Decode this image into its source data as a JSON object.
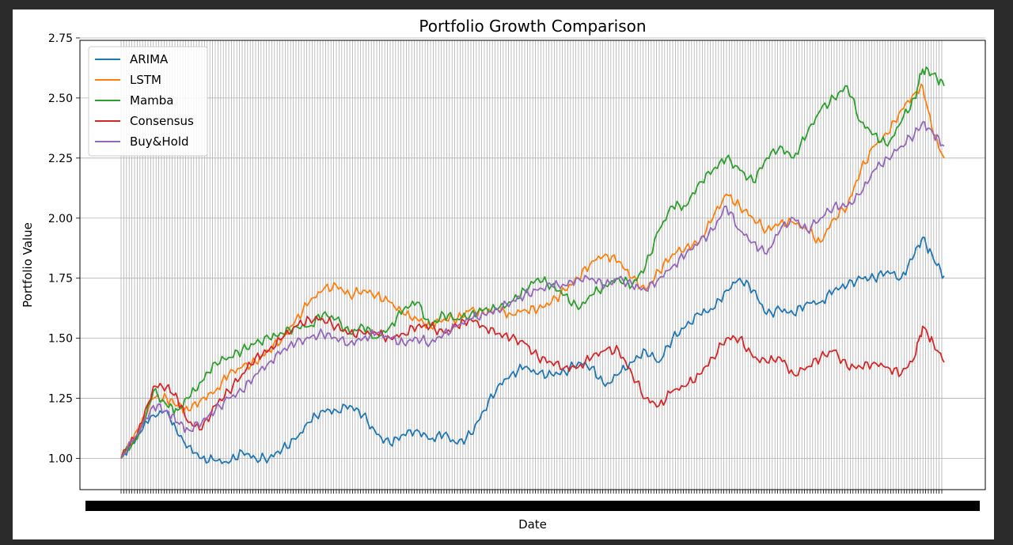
{
  "chart_data": {
    "type": "line",
    "title": "Portfolio Growth Comparison",
    "xlabel": "Date",
    "ylabel": "Portfolio Value",
    "ylim": [
      0.87,
      2.74
    ],
    "yticks": [
      "1.00",
      "1.25",
      "1.50",
      "1.75",
      "2.00",
      "2.25",
      "2.50",
      "2.75"
    ],
    "grid": true,
    "legend_position": "upper left",
    "x_tick_labels_note": "dense overlapping date tick labels (illegible)",
    "series": [
      {
        "name": "ARIMA",
        "color": "#1f77b4",
        "points": [
          [
            0,
            1.0
          ],
          [
            6,
            1.1
          ],
          [
            12,
            1.18
          ],
          [
            17,
            1.2
          ],
          [
            21,
            1.1
          ],
          [
            25,
            1.05
          ],
          [
            30,
            1.0
          ],
          [
            35,
            0.99
          ],
          [
            40,
            0.98
          ],
          [
            45,
            1.03
          ],
          [
            50,
            1.0
          ],
          [
            55,
            1.0
          ],
          [
            60,
            1.04
          ],
          [
            65,
            1.08
          ],
          [
            70,
            1.15
          ],
          [
            75,
            1.2
          ],
          [
            80,
            1.2
          ],
          [
            85,
            1.22
          ],
          [
            90,
            1.18
          ],
          [
            95,
            1.1
          ],
          [
            100,
            1.06
          ],
          [
            105,
            1.1
          ],
          [
            110,
            1.12
          ],
          [
            115,
            1.08
          ],
          [
            120,
            1.1
          ],
          [
            125,
            1.06
          ],
          [
            130,
            1.1
          ],
          [
            135,
            1.2
          ],
          [
            140,
            1.3
          ],
          [
            145,
            1.35
          ],
          [
            150,
            1.38
          ],
          [
            155,
            1.35
          ],
          [
            160,
            1.35
          ],
          [
            165,
            1.36
          ],
          [
            170,
            1.4
          ],
          [
            175,
            1.38
          ],
          [
            180,
            1.3
          ],
          [
            185,
            1.35
          ],
          [
            190,
            1.4
          ],
          [
            195,
            1.45
          ],
          [
            200,
            1.4
          ],
          [
            205,
            1.5
          ],
          [
            210,
            1.55
          ],
          [
            215,
            1.6
          ],
          [
            220,
            1.62
          ],
          [
            225,
            1.7
          ],
          [
            230,
            1.75
          ],
          [
            235,
            1.7
          ],
          [
            240,
            1.6
          ],
          [
            245,
            1.62
          ],
          [
            250,
            1.6
          ],
          [
            255,
            1.65
          ],
          [
            260,
            1.65
          ],
          [
            265,
            1.7
          ],
          [
            270,
            1.72
          ],
          [
            275,
            1.75
          ],
          [
            280,
            1.75
          ],
          [
            285,
            1.78
          ],
          [
            290,
            1.75
          ],
          [
            295,
            1.85
          ],
          [
            298,
            1.92
          ],
          [
            302,
            1.83
          ],
          [
            306,
            1.76
          ]
        ]
      },
      {
        "name": "LSTM",
        "color": "#ff7f0e",
        "points": [
          [
            0,
            1.0
          ],
          [
            6,
            1.12
          ],
          [
            12,
            1.25
          ],
          [
            17,
            1.25
          ],
          [
            21,
            1.22
          ],
          [
            25,
            1.2
          ],
          [
            30,
            1.25
          ],
          [
            35,
            1.28
          ],
          [
            40,
            1.35
          ],
          [
            45,
            1.38
          ],
          [
            50,
            1.4
          ],
          [
            55,
            1.45
          ],
          [
            60,
            1.5
          ],
          [
            65,
            1.58
          ],
          [
            70,
            1.65
          ],
          [
            75,
            1.7
          ],
          [
            80,
            1.72
          ],
          [
            85,
            1.68
          ],
          [
            90,
            1.7
          ],
          [
            95,
            1.68
          ],
          [
            100,
            1.65
          ],
          [
            105,
            1.6
          ],
          [
            110,
            1.58
          ],
          [
            115,
            1.55
          ],
          [
            120,
            1.58
          ],
          [
            125,
            1.58
          ],
          [
            130,
            1.62
          ],
          [
            135,
            1.6
          ],
          [
            140,
            1.62
          ],
          [
            145,
            1.6
          ],
          [
            150,
            1.62
          ],
          [
            155,
            1.62
          ],
          [
            160,
            1.65
          ],
          [
            165,
            1.7
          ],
          [
            170,
            1.75
          ],
          [
            175,
            1.82
          ],
          [
            180,
            1.85
          ],
          [
            185,
            1.82
          ],
          [
            190,
            1.75
          ],
          [
            195,
            1.7
          ],
          [
            200,
            1.78
          ],
          [
            205,
            1.85
          ],
          [
            210,
            1.88
          ],
          [
            215,
            1.9
          ],
          [
            220,
            2.0
          ],
          [
            225,
            2.1
          ],
          [
            230,
            2.05
          ],
          [
            235,
            2.0
          ],
          [
            240,
            1.95
          ],
          [
            245,
            1.98
          ],
          [
            250,
            1.98
          ],
          [
            255,
            1.95
          ],
          [
            260,
            1.9
          ],
          [
            265,
            2.0
          ],
          [
            270,
            2.05
          ],
          [
            275,
            2.2
          ],
          [
            280,
            2.3
          ],
          [
            285,
            2.35
          ],
          [
            290,
            2.45
          ],
          [
            295,
            2.52
          ],
          [
            298,
            2.55
          ],
          [
            302,
            2.35
          ],
          [
            306,
            2.25
          ]
        ]
      },
      {
        "name": "Mamba",
        "color": "#2ca02c",
        "points": [
          [
            0,
            1.0
          ],
          [
            6,
            1.08
          ],
          [
            12,
            1.28
          ],
          [
            17,
            1.22
          ],
          [
            21,
            1.2
          ],
          [
            25,
            1.25
          ],
          [
            30,
            1.32
          ],
          [
            35,
            1.4
          ],
          [
            40,
            1.42
          ],
          [
            45,
            1.45
          ],
          [
            50,
            1.48
          ],
          [
            55,
            1.5
          ],
          [
            60,
            1.52
          ],
          [
            65,
            1.55
          ],
          [
            70,
            1.55
          ],
          [
            75,
            1.6
          ],
          [
            80,
            1.58
          ],
          [
            85,
            1.52
          ],
          [
            90,
            1.55
          ],
          [
            95,
            1.5
          ],
          [
            100,
            1.55
          ],
          [
            105,
            1.62
          ],
          [
            110,
            1.65
          ],
          [
            115,
            1.55
          ],
          [
            120,
            1.6
          ],
          [
            125,
            1.58
          ],
          [
            130,
            1.6
          ],
          [
            135,
            1.62
          ],
          [
            140,
            1.62
          ],
          [
            145,
            1.65
          ],
          [
            150,
            1.7
          ],
          [
            155,
            1.75
          ],
          [
            160,
            1.72
          ],
          [
            165,
            1.68
          ],
          [
            170,
            1.62
          ],
          [
            175,
            1.68
          ],
          [
            180,
            1.72
          ],
          [
            185,
            1.75
          ],
          [
            190,
            1.72
          ],
          [
            195,
            1.8
          ],
          [
            200,
            1.95
          ],
          [
            205,
            2.05
          ],
          [
            210,
            2.05
          ],
          [
            215,
            2.15
          ],
          [
            220,
            2.2
          ],
          [
            225,
            2.25
          ],
          [
            230,
            2.2
          ],
          [
            235,
            2.15
          ],
          [
            240,
            2.25
          ],
          [
            245,
            2.3
          ],
          [
            250,
            2.25
          ],
          [
            255,
            2.35
          ],
          [
            260,
            2.45
          ],
          [
            265,
            2.5
          ],
          [
            270,
            2.55
          ],
          [
            275,
            2.4
          ],
          [
            280,
            2.35
          ],
          [
            285,
            2.3
          ],
          [
            290,
            2.4
          ],
          [
            295,
            2.5
          ],
          [
            298,
            2.62
          ],
          [
            302,
            2.6
          ],
          [
            306,
            2.55
          ]
        ]
      },
      {
        "name": "Consensus",
        "color": "#d62728",
        "points": [
          [
            0,
            1.0
          ],
          [
            6,
            1.1
          ],
          [
            12,
            1.3
          ],
          [
            17,
            1.3
          ],
          [
            21,
            1.25
          ],
          [
            25,
            1.15
          ],
          [
            30,
            1.12
          ],
          [
            35,
            1.22
          ],
          [
            40,
            1.28
          ],
          [
            45,
            1.35
          ],
          [
            50,
            1.42
          ],
          [
            55,
            1.45
          ],
          [
            60,
            1.5
          ],
          [
            65,
            1.55
          ],
          [
            70,
            1.58
          ],
          [
            75,
            1.58
          ],
          [
            80,
            1.55
          ],
          [
            85,
            1.52
          ],
          [
            90,
            1.52
          ],
          [
            95,
            1.52
          ],
          [
            100,
            1.5
          ],
          [
            105,
            1.52
          ],
          [
            110,
            1.55
          ],
          [
            115,
            1.55
          ],
          [
            120,
            1.52
          ],
          [
            125,
            1.55
          ],
          [
            130,
            1.58
          ],
          [
            135,
            1.55
          ],
          [
            140,
            1.52
          ],
          [
            145,
            1.5
          ],
          [
            150,
            1.48
          ],
          [
            155,
            1.42
          ],
          [
            160,
            1.4
          ],
          [
            165,
            1.38
          ],
          [
            170,
            1.38
          ],
          [
            175,
            1.42
          ],
          [
            180,
            1.45
          ],
          [
            185,
            1.45
          ],
          [
            190,
            1.35
          ],
          [
            195,
            1.25
          ],
          [
            200,
            1.22
          ],
          [
            205,
            1.28
          ],
          [
            210,
            1.3
          ],
          [
            215,
            1.35
          ],
          [
            220,
            1.42
          ],
          [
            225,
            1.5
          ],
          [
            230,
            1.5
          ],
          [
            235,
            1.42
          ],
          [
            240,
            1.4
          ],
          [
            245,
            1.42
          ],
          [
            250,
            1.35
          ],
          [
            255,
            1.38
          ],
          [
            260,
            1.42
          ],
          [
            265,
            1.45
          ],
          [
            270,
            1.38
          ],
          [
            275,
            1.38
          ],
          [
            280,
            1.4
          ],
          [
            285,
            1.38
          ],
          [
            290,
            1.35
          ],
          [
            295,
            1.42
          ],
          [
            298,
            1.55
          ],
          [
            302,
            1.48
          ],
          [
            306,
            1.4
          ]
        ]
      },
      {
        "name": "Buy&Hold",
        "color": "#9467bd",
        "points": [
          [
            0,
            1.0
          ],
          [
            6,
            1.1
          ],
          [
            12,
            1.22
          ],
          [
            17,
            1.2
          ],
          [
            21,
            1.15
          ],
          [
            25,
            1.12
          ],
          [
            30,
            1.15
          ],
          [
            35,
            1.2
          ],
          [
            40,
            1.25
          ],
          [
            45,
            1.28
          ],
          [
            50,
            1.35
          ],
          [
            55,
            1.4
          ],
          [
            60,
            1.45
          ],
          [
            65,
            1.48
          ],
          [
            70,
            1.5
          ],
          [
            75,
            1.52
          ],
          [
            80,
            1.5
          ],
          [
            85,
            1.48
          ],
          [
            90,
            1.5
          ],
          [
            95,
            1.52
          ],
          [
            100,
            1.5
          ],
          [
            105,
            1.48
          ],
          [
            110,
            1.5
          ],
          [
            115,
            1.48
          ],
          [
            120,
            1.52
          ],
          [
            125,
            1.55
          ],
          [
            130,
            1.58
          ],
          [
            135,
            1.6
          ],
          [
            140,
            1.62
          ],
          [
            145,
            1.65
          ],
          [
            150,
            1.68
          ],
          [
            155,
            1.7
          ],
          [
            160,
            1.72
          ],
          [
            165,
            1.72
          ],
          [
            170,
            1.75
          ],
          [
            175,
            1.75
          ],
          [
            180,
            1.72
          ],
          [
            185,
            1.75
          ],
          [
            190,
            1.72
          ],
          [
            195,
            1.7
          ],
          [
            200,
            1.75
          ],
          [
            205,
            1.8
          ],
          [
            210,
            1.85
          ],
          [
            215,
            1.9
          ],
          [
            220,
            1.95
          ],
          [
            225,
            2.05
          ],
          [
            230,
            1.95
          ],
          [
            235,
            1.9
          ],
          [
            240,
            1.85
          ],
          [
            245,
            1.95
          ],
          [
            250,
            2.0
          ],
          [
            255,
            1.95
          ],
          [
            260,
            2.0
          ],
          [
            265,
            2.05
          ],
          [
            270,
            2.05
          ],
          [
            275,
            2.1
          ],
          [
            280,
            2.2
          ],
          [
            285,
            2.25
          ],
          [
            290,
            2.3
          ],
          [
            295,
            2.35
          ],
          [
            298,
            2.4
          ],
          [
            302,
            2.35
          ],
          [
            306,
            2.3
          ]
        ]
      }
    ]
  }
}
